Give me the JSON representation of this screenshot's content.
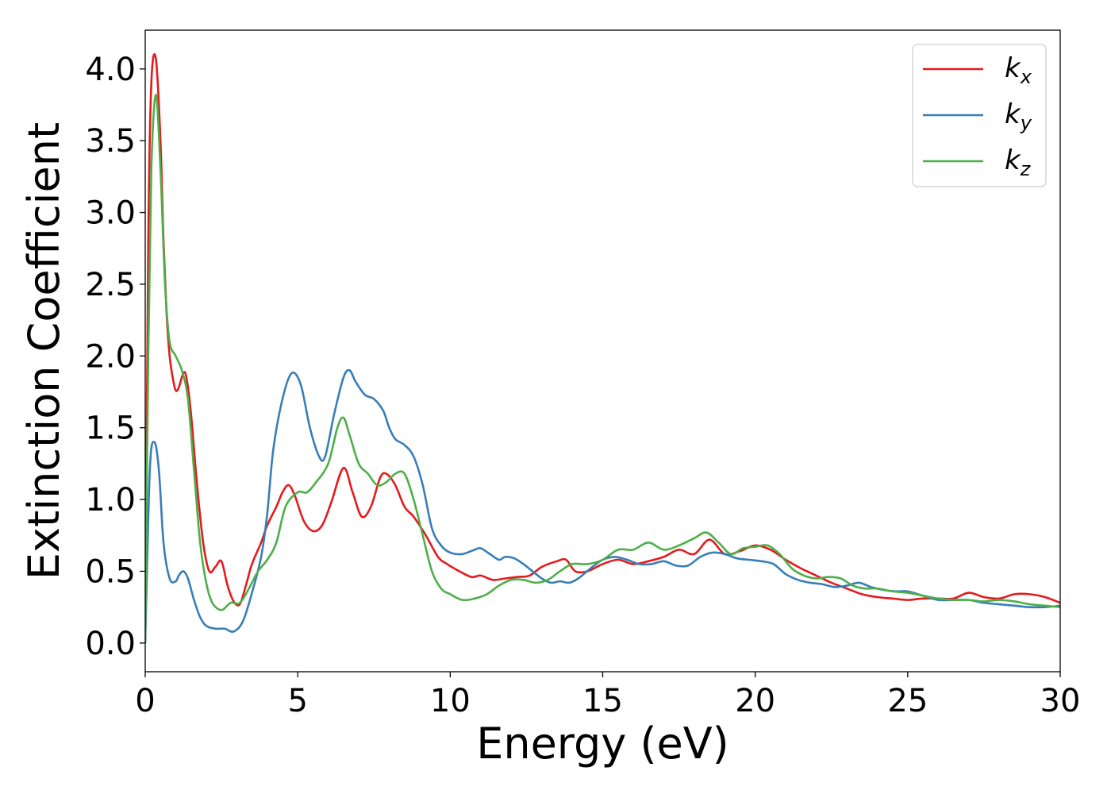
{
  "chart_data": {
    "type": "line",
    "xlabel": "Energy (eV)",
    "ylabel": "Extinction Coefficient",
    "xlim": [
      0,
      30
    ],
    "ylim": [
      -0.2,
      4.27
    ],
    "xticks": [
      0,
      5,
      10,
      15,
      20,
      25,
      30
    ],
    "xtick_labels": [
      "0",
      "5",
      "10",
      "15",
      "20",
      "25",
      "30"
    ],
    "yticks": [
      0.0,
      0.5,
      1.0,
      1.5,
      2.0,
      2.5,
      3.0,
      3.5,
      4.0
    ],
    "ytick_labels": [
      "0.0",
      "0.5",
      "1.0",
      "1.5",
      "2.0",
      "2.5",
      "3.0",
      "3.5",
      "4.0"
    ],
    "grid": false,
    "legend_position": "top-right",
    "series": [
      {
        "name": "k",
        "subscript": "x",
        "color": "#e41a1c",
        "x": [
          0,
          0.1,
          0.2,
          0.35,
          0.5,
          0.6,
          0.7,
          0.8,
          0.9,
          1.0,
          1.1,
          1.25,
          1.35,
          1.5,
          1.7,
          1.9,
          2.1,
          2.3,
          2.5,
          2.7,
          2.9,
          3.1,
          3.3,
          3.5,
          3.8,
          4.0,
          4.3,
          4.5,
          4.7,
          4.9,
          5.2,
          5.5,
          5.8,
          6.1,
          6.5,
          6.8,
          7.1,
          7.4,
          7.7,
          7.9,
          8.2,
          8.5,
          8.8,
          9.2,
          9.6,
          9.9,
          10.3,
          10.7,
          11.0,
          11.4,
          11.8,
          12.2,
          12.6,
          13.0,
          13.5,
          13.8,
          14.1,
          14.5,
          15.0,
          15.5,
          16.0,
          16.5,
          17.0,
          17.5,
          18.0,
          18.5,
          19.0,
          19.5,
          20.0,
          20.5,
          21.0,
          21.5,
          22.0,
          22.5,
          23.0,
          23.5,
          24.0,
          24.5,
          25.0,
          25.5,
          26.0,
          26.5,
          27.0,
          27.5,
          28.0,
          28.5,
          29.0,
          29.5,
          30.0
        ],
        "values": [
          0.0,
          2.8,
          3.9,
          4.07,
          3.5,
          2.8,
          2.3,
          2.0,
          1.85,
          1.76,
          1.78,
          1.88,
          1.85,
          1.6,
          1.1,
          0.7,
          0.5,
          0.53,
          0.57,
          0.4,
          0.29,
          0.27,
          0.4,
          0.55,
          0.7,
          0.82,
          0.95,
          1.05,
          1.1,
          1.03,
          0.85,
          0.78,
          0.82,
          0.98,
          1.22,
          1.05,
          0.88,
          0.95,
          1.15,
          1.18,
          1.1,
          0.95,
          0.88,
          0.75,
          0.6,
          0.55,
          0.5,
          0.46,
          0.47,
          0.44,
          0.45,
          0.46,
          0.47,
          0.53,
          0.57,
          0.58,
          0.5,
          0.5,
          0.55,
          0.58,
          0.55,
          0.57,
          0.6,
          0.65,
          0.62,
          0.72,
          0.62,
          0.64,
          0.68,
          0.65,
          0.58,
          0.52,
          0.47,
          0.42,
          0.38,
          0.34,
          0.32,
          0.31,
          0.3,
          0.31,
          0.31,
          0.31,
          0.35,
          0.32,
          0.31,
          0.34,
          0.34,
          0.32,
          0.28
        ]
      },
      {
        "name": "k",
        "subscript": "y",
        "color": "#377eb8",
        "x": [
          0,
          0.15,
          0.3,
          0.45,
          0.6,
          0.8,
          1.0,
          1.1,
          1.25,
          1.4,
          1.6,
          1.8,
          2.0,
          2.3,
          2.6,
          2.9,
          3.2,
          3.5,
          3.8,
          4.0,
          4.2,
          4.5,
          4.8,
          5.1,
          5.4,
          5.7,
          5.9,
          6.2,
          6.5,
          6.7,
          6.9,
          7.2,
          7.5,
          7.8,
          8.0,
          8.2,
          8.5,
          8.8,
          9.1,
          9.4,
          9.7,
          10.0,
          10.4,
          10.8,
          11.0,
          11.3,
          11.6,
          11.8,
          12.1,
          12.4,
          12.7,
          13.0,
          13.3,
          13.6,
          13.9,
          14.2,
          14.6,
          15.0,
          15.4,
          15.8,
          16.2,
          16.6,
          17.0,
          17.4,
          17.8,
          18.2,
          18.6,
          19.0,
          19.4,
          19.8,
          20.2,
          20.6,
          21.0,
          21.4,
          21.8,
          22.2,
          22.6,
          23.0,
          23.4,
          23.8,
          24.2,
          24.6,
          25.0,
          25.5,
          26.0,
          26.5,
          27.0,
          27.5,
          28.0,
          28.5,
          29.0,
          29.5,
          30.0
        ],
        "values": [
          0.0,
          1.2,
          1.4,
          1.2,
          0.7,
          0.45,
          0.43,
          0.47,
          0.5,
          0.45,
          0.3,
          0.18,
          0.12,
          0.1,
          0.1,
          0.08,
          0.15,
          0.35,
          0.6,
          0.9,
          1.35,
          1.7,
          1.88,
          1.8,
          1.5,
          1.3,
          1.3,
          1.6,
          1.85,
          1.9,
          1.82,
          1.73,
          1.7,
          1.62,
          1.5,
          1.42,
          1.38,
          1.3,
          1.1,
          0.8,
          0.68,
          0.63,
          0.62,
          0.65,
          0.66,
          0.62,
          0.58,
          0.6,
          0.59,
          0.55,
          0.5,
          0.45,
          0.42,
          0.43,
          0.42,
          0.45,
          0.52,
          0.58,
          0.6,
          0.58,
          0.55,
          0.55,
          0.57,
          0.54,
          0.54,
          0.6,
          0.63,
          0.62,
          0.59,
          0.58,
          0.57,
          0.55,
          0.48,
          0.44,
          0.42,
          0.41,
          0.39,
          0.4,
          0.42,
          0.39,
          0.37,
          0.36,
          0.36,
          0.33,
          0.3,
          0.3,
          0.3,
          0.28,
          0.27,
          0.26,
          0.25,
          0.25,
          0.26
        ]
      },
      {
        "name": "k",
        "subscript": "z",
        "color": "#4daf4a",
        "x": [
          0,
          0.1,
          0.2,
          0.35,
          0.5,
          0.65,
          0.8,
          1.0,
          1.2,
          1.4,
          1.6,
          1.8,
          2.0,
          2.2,
          2.5,
          2.8,
          3.1,
          3.4,
          3.7,
          4.0,
          4.3,
          4.6,
          5.0,
          5.3,
          5.6,
          6.0,
          6.3,
          6.5,
          6.7,
          7.0,
          7.3,
          7.6,
          7.9,
          8.2,
          8.5,
          8.8,
          9.1,
          9.4,
          9.7,
          10.0,
          10.4,
          10.8,
          11.2,
          11.6,
          12.0,
          12.4,
          12.8,
          13.2,
          13.6,
          14.0,
          14.5,
          15.0,
          15.5,
          16.0,
          16.5,
          17.0,
          17.5,
          18.0,
          18.4,
          18.8,
          19.2,
          19.6,
          20.0,
          20.4,
          20.8,
          21.2,
          21.6,
          22.0,
          22.4,
          22.8,
          23.2,
          23.6,
          24.0,
          24.5,
          25.0,
          25.5,
          26.0,
          26.5,
          27.0,
          27.5,
          28.0,
          28.5,
          29.0,
          29.5,
          30.0
        ],
        "values": [
          0.0,
          2.0,
          3.3,
          3.82,
          3.3,
          2.5,
          2.1,
          2.0,
          1.9,
          1.7,
          1.2,
          0.7,
          0.42,
          0.28,
          0.23,
          0.28,
          0.28,
          0.38,
          0.5,
          0.58,
          0.7,
          0.95,
          1.05,
          1.05,
          1.12,
          1.25,
          1.5,
          1.57,
          1.45,
          1.25,
          1.18,
          1.1,
          1.12,
          1.18,
          1.18,
          1.0,
          0.75,
          0.5,
          0.38,
          0.34,
          0.3,
          0.31,
          0.34,
          0.4,
          0.44,
          0.44,
          0.42,
          0.44,
          0.5,
          0.55,
          0.55,
          0.58,
          0.65,
          0.65,
          0.7,
          0.65,
          0.68,
          0.73,
          0.77,
          0.7,
          0.62,
          0.66,
          0.67,
          0.68,
          0.62,
          0.52,
          0.47,
          0.45,
          0.46,
          0.45,
          0.4,
          0.38,
          0.38,
          0.36,
          0.35,
          0.33,
          0.31,
          0.3,
          0.3,
          0.29,
          0.3,
          0.29,
          0.27,
          0.26,
          0.25
        ]
      }
    ]
  }
}
